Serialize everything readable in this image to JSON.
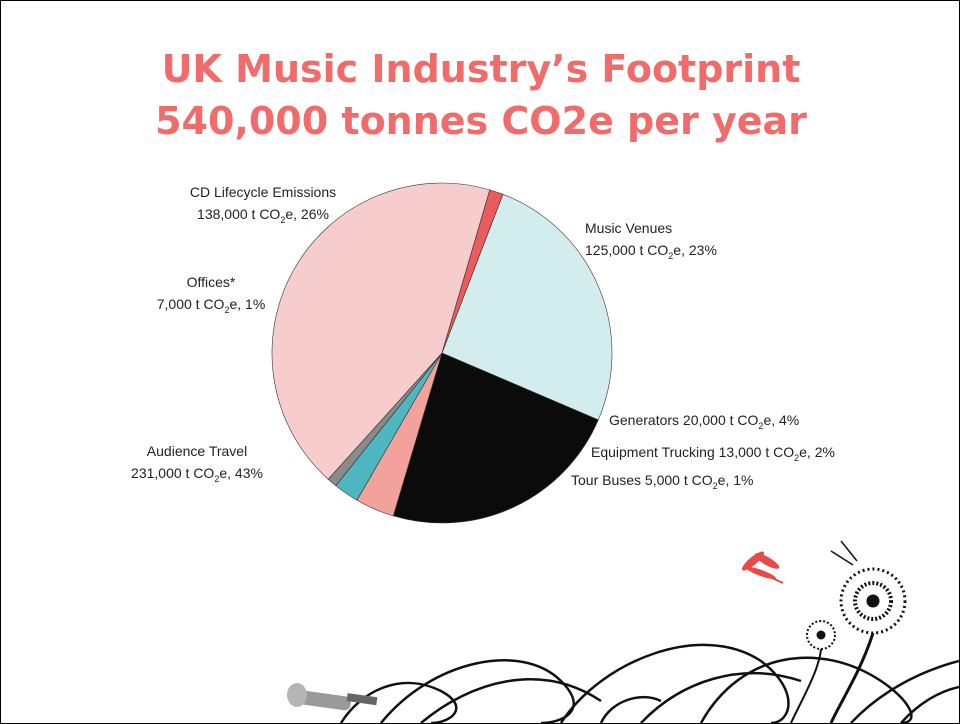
{
  "colors": {
    "title": "#f26b6b",
    "label_text": "#222222"
  },
  "icons": [
    "dragonfly-icon",
    "dandelion-icon",
    "microphone-icon",
    "grass-swirl-icon"
  ],
  "chart_data": {
    "type": "pie",
    "title": "UK Music Industry’s Footprint",
    "subtitle": "540,000 tonnes CO2e per year",
    "unit_text": "t CO2e",
    "slices": [
      {
        "name": "CD Lifecycle Emissions",
        "value": 138000,
        "percent": 26,
        "color": "#d3ecee",
        "label_line1": "CD Lifecycle Emissions",
        "label_line2": "138,000 t CO2e, 26%"
      },
      {
        "name": "Music Venues",
        "value": 125000,
        "percent": 23,
        "color": "#0b0b0b",
        "label_line1": "Music Venues",
        "label_line2": "125,000 t CO2e, 23%"
      },
      {
        "name": "Generators",
        "value": 20000,
        "percent": 4,
        "color": "#f2a19c",
        "label_line1": "Generators 20,000 t CO2e, 4%",
        "label_line2": ""
      },
      {
        "name": "Equipment Trucking",
        "value": 13000,
        "percent": 2,
        "color": "#4db6bf",
        "label_line1": "Equipment Trucking 13,000 t CO2e, 2%",
        "label_line2": ""
      },
      {
        "name": "Tour Buses",
        "value": 5000,
        "percent": 1,
        "color": "#8a8a8a",
        "label_line1": "Tour Buses 5,000 t CO2e, 1%",
        "label_line2": ""
      },
      {
        "name": "Audience Travel",
        "value": 231000,
        "percent": 43,
        "color": "#f6cccc",
        "label_line1": "Audience Travel",
        "label_line2": "231,000 t CO2e, 43%"
      },
      {
        "name": "Offices*",
        "value": 7000,
        "percent": 1,
        "color": "#ec5b5b",
        "label_line1": "Offices*",
        "label_line2": "7,000 t CO2e, 1%"
      }
    ]
  }
}
